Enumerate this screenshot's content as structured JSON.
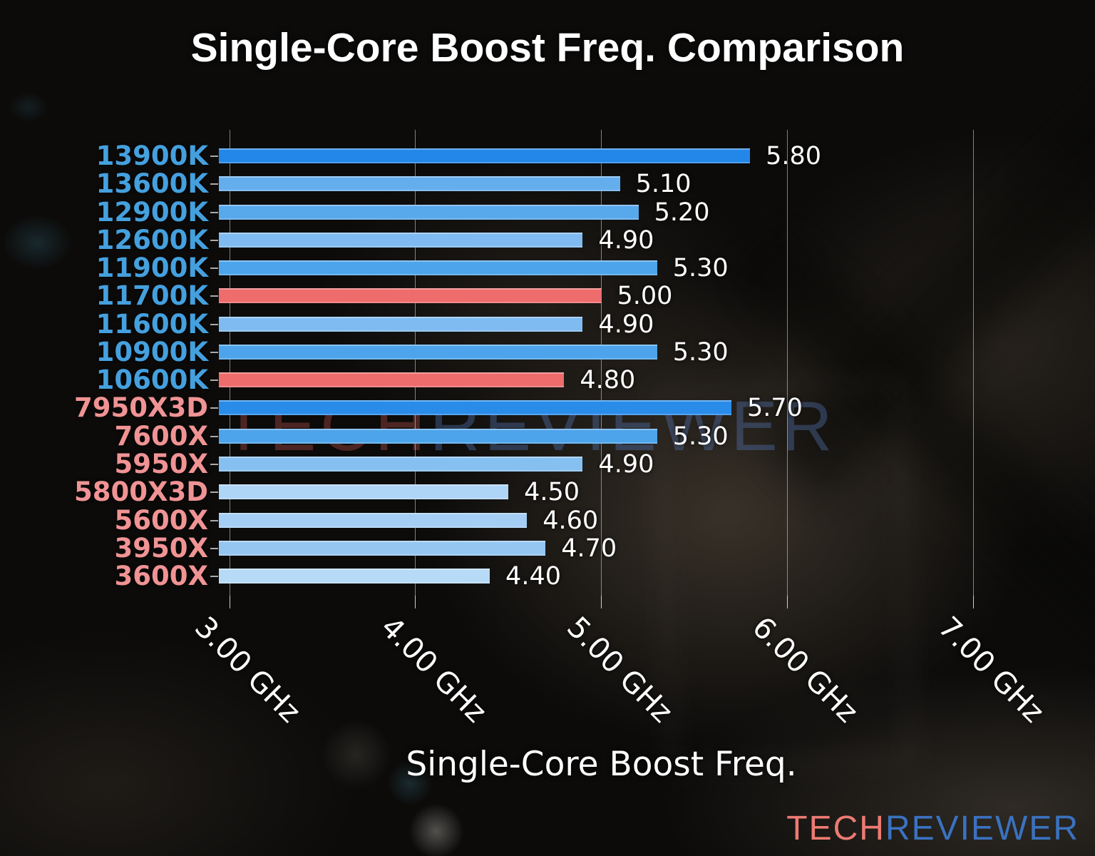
{
  "figure": {
    "watermark": {
      "part1": "TECH",
      "part2": "REVIEWER"
    },
    "logo": {
      "part1": "TECH",
      "part2": "REVIEWER"
    }
  },
  "palette": {
    "intel_label": "#45a0de",
    "amd_label": "#f09394",
    "value_text": "#ffffff",
    "highlight_bar": "#ee6c6c",
    "logo_tech": "#ec7b73",
    "logo_reviewer": "#3a72c0",
    "watermark_tech": "rgba(226,98,92,0.30)",
    "watermark_reviewer": "rgba(95,135,205,0.33)"
  },
  "chart_data": {
    "type": "bar",
    "orientation": "horizontal",
    "title": "Single-Core Boost Freq. Comparison",
    "xlabel": "Single-Core Boost Freq.",
    "x_unit": "GHz",
    "xlim": [
      2.94,
      7.06
    ],
    "grid": "vertical-gridlines-on",
    "legend": "none",
    "x_ticks": [
      {
        "value": 3.0,
        "label": "3.00 GHz"
      },
      {
        "value": 4.0,
        "label": "4.00 GHz"
      },
      {
        "value": 5.0,
        "label": "5.00 GHz"
      },
      {
        "value": 6.0,
        "label": "6.00 GHz"
      },
      {
        "value": 7.0,
        "label": "7.00 GHz"
      }
    ],
    "rows": [
      {
        "cpu": "13900K",
        "vendor": "intel",
        "value": 5.8,
        "value_label": "5.80",
        "bar_color": "#2287e8"
      },
      {
        "cpu": "13600K",
        "vendor": "intel",
        "value": 5.1,
        "value_label": "5.10",
        "bar_color": "#65aeee"
      },
      {
        "cpu": "12900K",
        "vendor": "intel",
        "value": 5.2,
        "value_label": "5.20",
        "bar_color": "#58a8ec"
      },
      {
        "cpu": "12600K",
        "vendor": "intel",
        "value": 4.9,
        "value_label": "4.90",
        "bar_color": "#7fbbf0"
      },
      {
        "cpu": "11900K",
        "vendor": "intel",
        "value": 5.3,
        "value_label": "5.30",
        "bar_color": "#4da4ea"
      },
      {
        "cpu": "11700K",
        "vendor": "intel",
        "value": 5.0,
        "value_label": "5.00",
        "bar_color": "#ee6c6c"
      },
      {
        "cpu": "11600K",
        "vendor": "intel",
        "value": 4.9,
        "value_label": "4.90",
        "bar_color": "#7fbbf0"
      },
      {
        "cpu": "10900K",
        "vendor": "intel",
        "value": 5.3,
        "value_label": "5.30",
        "bar_color": "#4da4ea"
      },
      {
        "cpu": "10600K",
        "vendor": "intel",
        "value": 4.8,
        "value_label": "4.80",
        "bar_color": "#ee6c6c"
      },
      {
        "cpu": "7950X3D",
        "vendor": "amd",
        "value": 5.7,
        "value_label": "5.70",
        "bar_color": "#2a8ce9"
      },
      {
        "cpu": "7600X",
        "vendor": "amd",
        "value": 5.3,
        "value_label": "5.30",
        "bar_color": "#4da4ea"
      },
      {
        "cpu": "5950X",
        "vendor": "amd",
        "value": 4.9,
        "value_label": "4.90",
        "bar_color": "#86c0f1"
      },
      {
        "cpu": "5800X3D",
        "vendor": "amd",
        "value": 4.5,
        "value_label": "4.50",
        "bar_color": "#aed4f6"
      },
      {
        "cpu": "5600X",
        "vendor": "amd",
        "value": 4.6,
        "value_label": "4.60",
        "bar_color": "#a4cef4"
      },
      {
        "cpu": "3950X",
        "vendor": "amd",
        "value": 4.7,
        "value_label": "4.70",
        "bar_color": "#95c6f2"
      },
      {
        "cpu": "3600X",
        "vendor": "amd",
        "value": 4.4,
        "value_label": "4.40",
        "bar_color": "#b7daf7"
      }
    ]
  }
}
